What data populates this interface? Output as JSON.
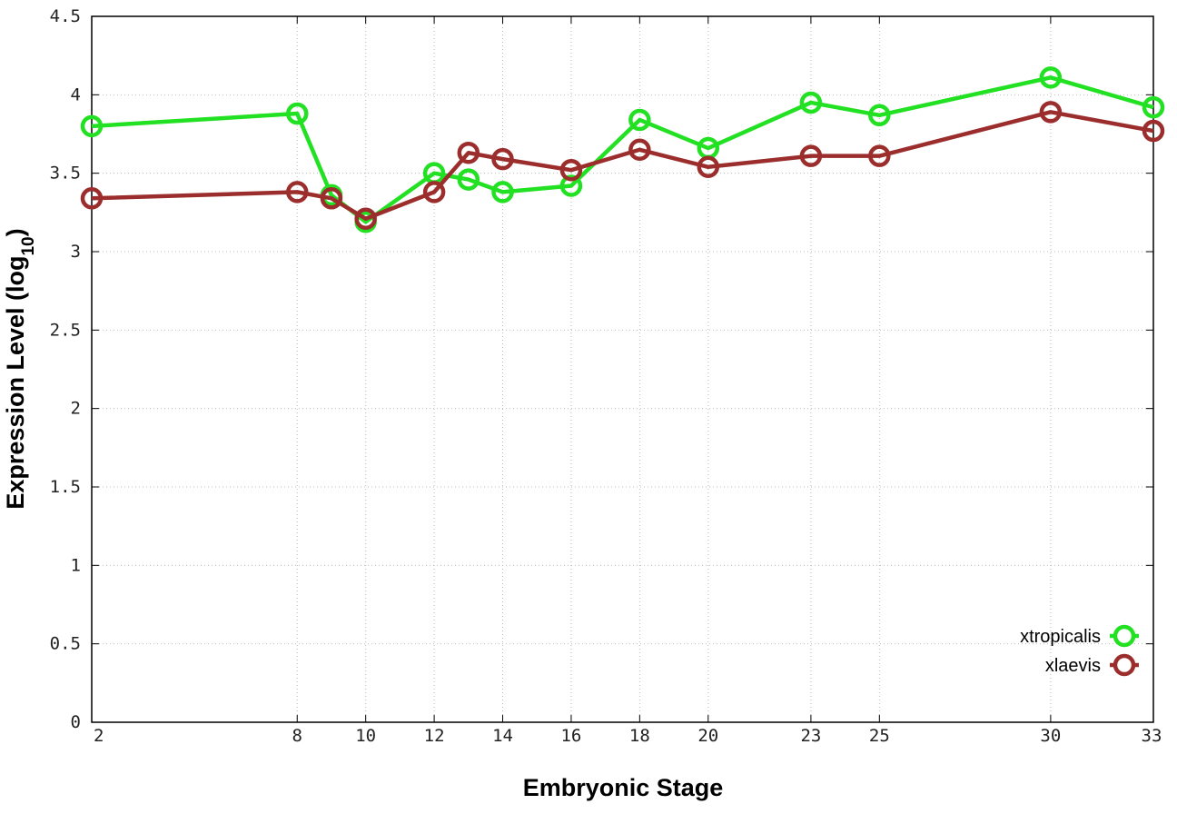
{
  "chart_data": {
    "type": "line",
    "xlabel": "Embryonic Stage",
    "ylabel_main": "Expression Level (log",
    "ylabel_sub": "10",
    "ylabel_close": ")",
    "xlim": [
      2,
      33
    ],
    "ylim": [
      0,
      4.5
    ],
    "x": [
      2,
      8,
      9,
      10,
      12,
      13,
      14,
      16,
      18,
      20,
      23,
      25,
      30,
      33
    ],
    "x_tick_labels": [
      "2",
      "8",
      "10",
      "12",
      "14",
      "16",
      "18",
      "20",
      "23",
      "25",
      "30",
      "33"
    ],
    "x_tick_values": [
      2,
      8,
      10,
      12,
      14,
      16,
      18,
      20,
      23,
      25,
      30,
      33
    ],
    "y_ticks": [
      {
        "value": 0,
        "label": "0"
      },
      {
        "value": 0.5,
        "label": "0.5"
      },
      {
        "value": 1,
        "label": "1"
      },
      {
        "value": 1.5,
        "label": "1.5"
      },
      {
        "value": 2,
        "label": "2"
      },
      {
        "value": 2.5,
        "label": "2.5"
      },
      {
        "value": 3,
        "label": "3"
      },
      {
        "value": 3.5,
        "label": "3.5"
      },
      {
        "value": 4,
        "label": "4"
      },
      {
        "value": 4.5,
        "label": "4.5"
      }
    ],
    "grid": true,
    "legend_position": "bottom-right",
    "series": [
      {
        "name": "xtropicalis",
        "color": "#22e022",
        "values": [
          3.8,
          3.88,
          3.36,
          3.19,
          3.5,
          3.46,
          3.38,
          3.42,
          3.84,
          3.66,
          3.95,
          3.87,
          4.11,
          3.92
        ]
      },
      {
        "name": "xlaevis",
        "color": "#9b2d2d",
        "values": [
          3.34,
          3.38,
          3.34,
          3.21,
          3.38,
          3.63,
          3.59,
          3.52,
          3.65,
          3.54,
          3.61,
          3.61,
          3.89,
          3.77
        ]
      }
    ]
  }
}
